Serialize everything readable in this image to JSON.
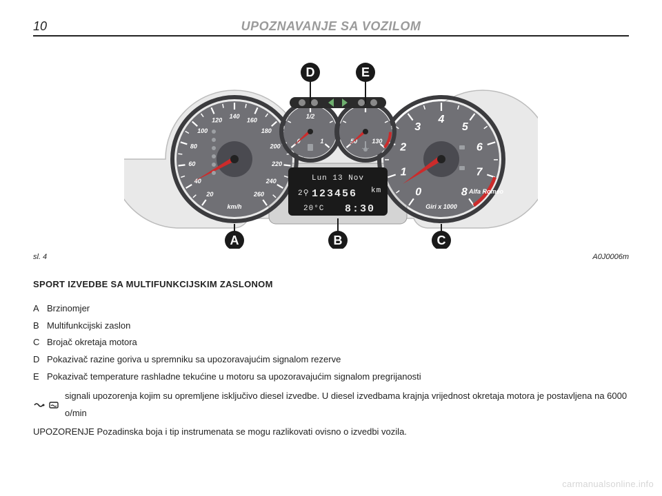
{
  "header": {
    "page_number": "10",
    "section": "UPOZNAVANJE SA VOZILOM"
  },
  "figure": {
    "caption_left": "sl. 4",
    "caption_right": "A0J0006m",
    "callouts": [
      "A",
      "B",
      "C",
      "D",
      "E"
    ],
    "cluster": {
      "background": "#e9e9e9",
      "bezel": "#d4d4d4",
      "dial_face": "#707075",
      "dial_rim": "#3b3b3e",
      "needle": "#cc2b2b",
      "tick_color": "#ffffff",
      "lcd_bg": "#1a1a1a",
      "lcd_fg": "#eaeaea",
      "speedo": {
        "ticks": [
          "20",
          "40",
          "60",
          "80",
          "100",
          "120",
          "140",
          "160",
          "180",
          "200",
          "220",
          "240",
          "260"
        ],
        "unit": "km/h"
      },
      "tacho": {
        "ticks": [
          "0",
          "1",
          "2",
          "3",
          "4",
          "5",
          "6",
          "7",
          "8"
        ],
        "unit": "Giri x 1000"
      },
      "fuel": {
        "labels": [
          "0",
          "1/2",
          "1"
        ]
      },
      "temp": {
        "labels": [
          "50",
          "",
          "130"
        ]
      },
      "lcd": {
        "line1": "Lun 13 Nov",
        "odo": "123456",
        "odo_unit": "km",
        "temp": "20°C",
        "clock": "8:30"
      }
    }
  },
  "subheading": "SPORT IZVEDBE SA MULTIFUNKCIJSKIM ZASLONOM",
  "legend": {
    "A": "Brzinomjer",
    "B": "Multifunkcijski zaslon",
    "C": "Brojač okretaja motora",
    "D": "Pokazivač razine goriva u spremniku sa upozoravajućim signalom rezerve",
    "E": "Pokazivač temperature rashladne tekućine u motoru sa upozoravajućim signalom pregrijanosti"
  },
  "note_icons": [
    "glow-plug-icon",
    "water-in-fuel-icon"
  ],
  "note": "signali upozorenja kojim su opremljene isključivo diesel izvedbe. U diesel izvedbama krajnja vrijednost okretaja motora je postavljena na 6000 o/min",
  "warning": "UPOZORENJE Pozadinska boja i tip instrumenata se mogu razlikovati ovisno o izvedbi vozila.",
  "watermark": "carmanualsonline.info"
}
